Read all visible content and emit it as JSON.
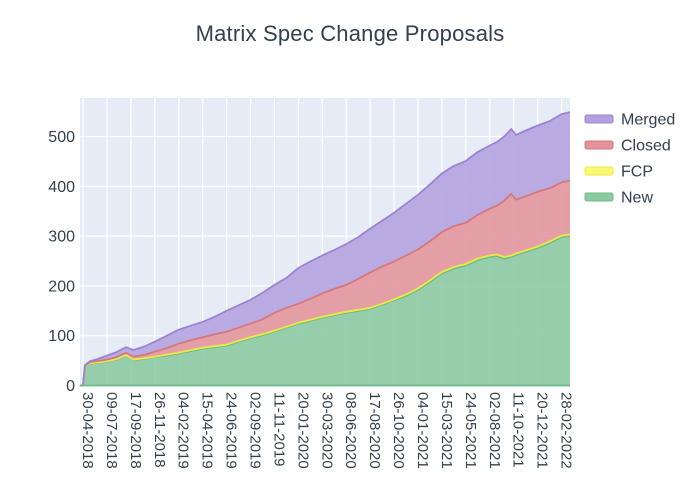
{
  "title": "Matrix Spec Change Proposals",
  "chart_data": {
    "type": "area",
    "stacked": true,
    "title": "Matrix Spec Change Proposals",
    "xlabel": "",
    "ylabel": "",
    "grid": true,
    "legend_position": "right-top",
    "legend_order": [
      "Merged",
      "Closed",
      "FCP",
      "New"
    ],
    "background_color": "#e5ecf6",
    "grid_color": "#ffffff",
    "text_color": "#34404e",
    "y_ticks": [
      0,
      100,
      200,
      300,
      400,
      500
    ],
    "ylim": [
      0,
      577
    ],
    "x_tick_labels": [
      "30-04-2018",
      "09-07-2018",
      "17-09-2018",
      "26-11-2018",
      "04-02-2019",
      "15-04-2019",
      "24-06-2019",
      "02-09-2019",
      "11-11-2019",
      "20-01-2020",
      "30-03-2020",
      "08-06-2020",
      "17-08-2020",
      "26-10-2020",
      "04-01-2021",
      "15-03-2021",
      "24-05-2021",
      "02-08-2021",
      "11-10-2021",
      "20-12-2021",
      "28-02-2022"
    ],
    "x_tick_interval_days": 70,
    "x_frac": [
      -0.13,
      0,
      0.08,
      0.3,
      0.6,
      1.0,
      1.4,
      1.8,
      2.1,
      2.6,
      3.0,
      3.5,
      4.0,
      4.5,
      5.0,
      5.5,
      6.0,
      6.5,
      7.0,
      7.5,
      8.0,
      8.5,
      9.0,
      9.5,
      10.0,
      10.5,
      11.0,
      11.5,
      12.0,
      12.5,
      13.0,
      13.5,
      14.0,
      14.5,
      15.0,
      15.5,
      16.0,
      16.5,
      17.0,
      17.3,
      17.6,
      17.9,
      18.1,
      18.5,
      19.0,
      19.5,
      20.0,
      20.35
    ],
    "series": [
      {
        "name": "New",
        "fill_color": "#8bc9a0",
        "line_color": "#6cbc85",
        "values": [
          0,
          0,
          38,
          44,
          45,
          48,
          52,
          60,
          51,
          54,
          57,
          60,
          64,
          69,
          74,
          77,
          80,
          88,
          95,
          101,
          108,
          116,
          124,
          130,
          136,
          141,
          146,
          150,
          154,
          162,
          171,
          180,
          192,
          208,
          225,
          235,
          241,
          252,
          258,
          260,
          255,
          258,
          262,
          268,
          276,
          286,
          298,
          300
        ]
      },
      {
        "name": "FCP",
        "fill_color": "#f9f871",
        "line_color": "#eeea45",
        "values": [
          0,
          0,
          1,
          1,
          1,
          1,
          1,
          1,
          1,
          1,
          1,
          2,
          2,
          2,
          2,
          2,
          2,
          2,
          2,
          2,
          2,
          2,
          2,
          2,
          2,
          2,
          2,
          2,
          2,
          2,
          2,
          3,
          3,
          3,
          3,
          3,
          3,
          3,
          3,
          3,
          3,
          3,
          3,
          3,
          3,
          3,
          3,
          3
        ]
      },
      {
        "name": "Closed",
        "fill_color": "#e2949a",
        "line_color": "#d4777e",
        "values": [
          0,
          0,
          1,
          2,
          3,
          3,
          4,
          5,
          6,
          7,
          10,
          13,
          18,
          20,
          21,
          24,
          26,
          26,
          27,
          30,
          36,
          38,
          38,
          42,
          47,
          51,
          54,
          62,
          71,
          75,
          76,
          78,
          78,
          79,
          80,
          82,
          83,
          88,
          94,
          98,
          113,
          124,
          108,
          109,
          110,
          107,
          107,
          108
        ]
      },
      {
        "name": "Merged",
        "fill_color": "#b3a1df",
        "line_color": "#9c82d4",
        "values": [
          0,
          0,
          1,
          2,
          4,
          8,
          10,
          11,
          13,
          17,
          20,
          25,
          28,
          29,
          31,
          35,
          42,
          45,
          48,
          53,
          56,
          60,
          72,
          75,
          76,
          78,
          82,
          84,
          88,
          92,
          98,
          104,
          110,
          114,
          118,
          121,
          124,
          126,
          127,
          128,
          129,
          130,
          130,
          132,
          133,
          135,
          137,
          138
        ]
      }
    ]
  }
}
